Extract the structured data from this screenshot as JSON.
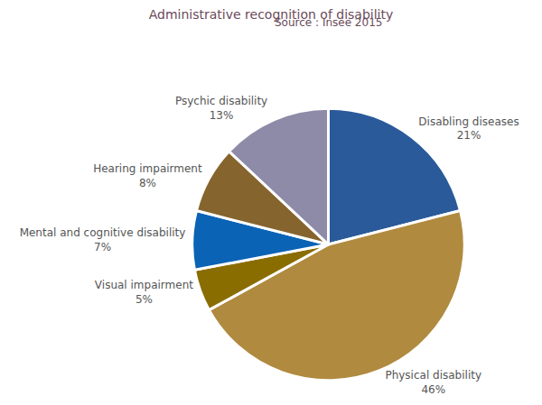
{
  "chart_data": {
    "type": "pie",
    "title": "Administrative recognition of disability",
    "subtitle": "Source : Insee 2015",
    "categories": [
      "Disabling diseases",
      "Physical disability",
      "Visual impairment",
      "Mental and cognitive disability",
      "Hearing impairment",
      "Psychic disability"
    ],
    "values": [
      21,
      46,
      5,
      7,
      8,
      13
    ],
    "value_labels": [
      "21%",
      "46%",
      "5%",
      "7%",
      "8%",
      "13%"
    ],
    "colors": [
      "#2a5a9a",
      "#b08a3e",
      "#8a6d00",
      "#0a63b5",
      "#86642e",
      "#8e8ba8"
    ],
    "data_labels": true
  }
}
